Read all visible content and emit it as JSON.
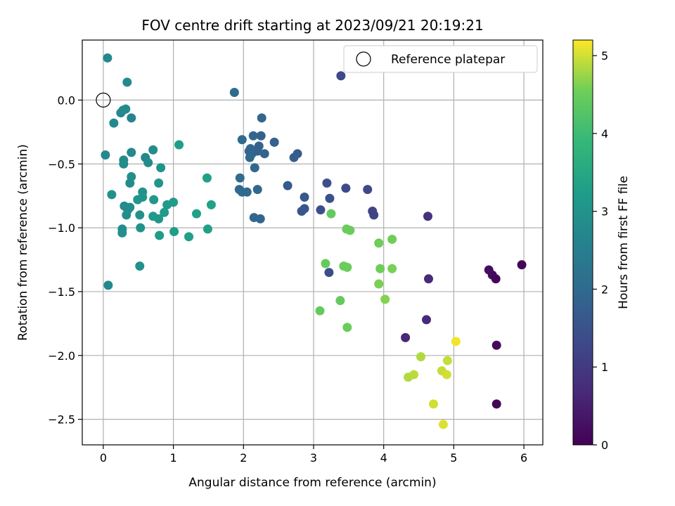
{
  "chart_data": {
    "type": "scatter",
    "title": "FOV centre drift starting at 2023/09/21 20:19:21",
    "xlabel": "Angular distance from reference (arcmin)",
    "ylabel": "Rotation from reference (arcmin)",
    "xlim": [
      -0.3,
      6.27
    ],
    "ylim": [
      -2.7,
      0.47
    ],
    "xticks": [
      0,
      1,
      2,
      3,
      4,
      5,
      6
    ],
    "yticks": [
      0.0,
      -0.5,
      -1.0,
      -1.5,
      -2.0,
      -2.5
    ],
    "ytick_labels": [
      "0.0",
      "−0.5",
      "−1.0",
      "−1.5",
      "−2.0",
      "−2.5"
    ],
    "grid": true,
    "colormap": "viridis",
    "colorbar": {
      "label": "Hours from first FF file",
      "range": [
        0,
        5.2
      ],
      "ticks": [
        0,
        1,
        2,
        3,
        4,
        5
      ]
    },
    "legend": {
      "position": "upper-right",
      "entries": [
        {
          "label": "Reference platepar",
          "marker": "open-circle",
          "x": 0,
          "y": 0
        }
      ]
    },
    "series": [
      {
        "x": [
          0.06,
          0.34,
          0.32,
          0.25,
          0.28,
          0.4,
          0.15,
          0.03,
          0.4,
          0.29,
          0.29,
          0.4,
          0.38,
          0.12,
          0.3,
          0.38,
          0.35,
          0.33,
          0.52,
          0.27,
          0.27,
          0.53,
          0.07,
          0.56,
          0.56,
          0.6,
          0.64,
          0.71,
          0.82,
          0.72,
          0.79,
          0.49,
          0.71,
          0.79,
          0.87,
          0.91,
          1.0,
          0.52,
          0.8,
          1.01,
          1.08,
          1.48,
          1.54,
          1.33,
          1.22,
          1.49
        ],
        "y": [
          0.33,
          0.14,
          -0.07,
          -0.1,
          -0.08,
          -0.14,
          -0.18,
          -0.43,
          -0.41,
          -0.47,
          -0.5,
          -0.6,
          -0.65,
          -0.74,
          -0.83,
          -0.84,
          -0.86,
          -0.9,
          -0.9,
          -1.01,
          -1.04,
          -1.0,
          -1.45,
          -0.72,
          -0.76,
          -0.45,
          -0.49,
          -0.39,
          -0.53,
          -0.78,
          -0.65,
          -0.78,
          -0.91,
          -0.93,
          -0.88,
          -0.82,
          -0.8,
          -1.3,
          -1.06,
          -1.03,
          -0.35,
          -0.61,
          -0.82,
          -0.89,
          -1.07,
          -1.01
        ],
        "c": [
          2.75,
          2.8,
          2.85,
          2.7,
          2.8,
          2.65,
          2.75,
          2.75,
          2.75,
          2.8,
          2.8,
          2.9,
          2.85,
          2.95,
          2.8,
          2.85,
          2.85,
          2.9,
          2.95,
          2.85,
          2.9,
          2.95,
          2.75,
          3.0,
          3.05,
          2.75,
          2.8,
          2.85,
          3.0,
          3.1,
          3.05,
          3.05,
          3.15,
          3.1,
          3.15,
          3.15,
          3.2,
          2.95,
          3.2,
          3.2,
          3.25,
          3.3,
          3.35,
          3.3,
          3.25,
          3.3
        ]
      },
      {
        "x": [
          1.87,
          1.98,
          2.1,
          2.14,
          2.26,
          2.25,
          2.22,
          2.12,
          2.09,
          2.2,
          2.08,
          2.3,
          2.44,
          2.16,
          1.95,
          1.94,
          1.98,
          2.05,
          2.2,
          2.15,
          2.24,
          2.77,
          2.72,
          2.63,
          2.87,
          2.87,
          2.83,
          3.19,
          3.1,
          3.23,
          3.22,
          3.46,
          3.77,
          3.84,
          3.86,
          3.39
        ],
        "y": [
          0.06,
          -0.31,
          -0.38,
          -0.28,
          -0.14,
          -0.28,
          -0.36,
          -0.42,
          -0.45,
          -0.4,
          -0.4,
          -0.42,
          -0.33,
          -0.53,
          -0.61,
          -0.7,
          -0.72,
          -0.72,
          -0.7,
          -0.92,
          -0.93,
          -0.42,
          -0.45,
          -0.67,
          -0.76,
          -0.85,
          -0.87,
          -0.65,
          -0.86,
          -0.77,
          -1.35,
          -0.69,
          -0.7,
          -0.87,
          -0.9,
          0.19
        ],
        "c": [
          2.05,
          2.0,
          1.95,
          1.9,
          1.9,
          1.85,
          1.85,
          1.95,
          1.95,
          1.85,
          1.9,
          1.85,
          1.8,
          1.95,
          2.05,
          2.0,
          2.0,
          2.0,
          1.95,
          1.9,
          1.9,
          1.7,
          1.75,
          1.65,
          1.6,
          1.55,
          1.55,
          1.45,
          1.4,
          1.45,
          1.4,
          1.35,
          1.3,
          1.2,
          1.2,
          1.3
        ]
      },
      {
        "x": [
          3.25,
          3.47,
          3.52,
          3.17,
          3.43,
          3.48,
          3.93,
          4.12,
          3.95,
          4.12,
          3.93,
          4.02,
          3.38,
          3.48,
          3.09
        ],
        "y": [
          -0.89,
          -1.01,
          -1.02,
          -1.28,
          -1.3,
          -1.31,
          -1.12,
          -1.09,
          -1.32,
          -1.32,
          -1.44,
          -1.56,
          -1.57,
          -1.78,
          -1.65
        ],
        "c": [
          4.45,
          4.5,
          4.5,
          4.45,
          4.5,
          4.5,
          4.55,
          4.55,
          4.55,
          4.6,
          4.6,
          4.65,
          4.45,
          4.5,
          4.45
        ]
      },
      {
        "x": [
          5.03,
          4.53,
          4.91,
          4.83,
          4.9,
          4.35,
          4.43,
          4.71,
          4.85
        ],
        "y": [
          -1.89,
          -2.01,
          -2.04,
          -2.12,
          -2.15,
          -2.17,
          -2.15,
          -2.38,
          -2.54
        ],
        "c": [
          5.15,
          4.85,
          4.95,
          4.95,
          5.0,
          4.85,
          4.9,
          5.0,
          5.05
        ]
      },
      {
        "x": [
          4.63,
          4.64,
          4.61,
          4.31,
          5.5,
          5.55,
          5.6,
          5.97,
          5.61,
          5.61
        ],
        "y": [
          -0.91,
          -1.4,
          -1.72,
          -1.86,
          -1.33,
          -1.37,
          -1.4,
          -1.29,
          -1.92,
          -2.38
        ],
        "c": [
          0.85,
          0.7,
          0.7,
          0.65,
          0.2,
          0.15,
          0.1,
          0.05,
          0.15,
          0.05
        ]
      }
    ]
  }
}
